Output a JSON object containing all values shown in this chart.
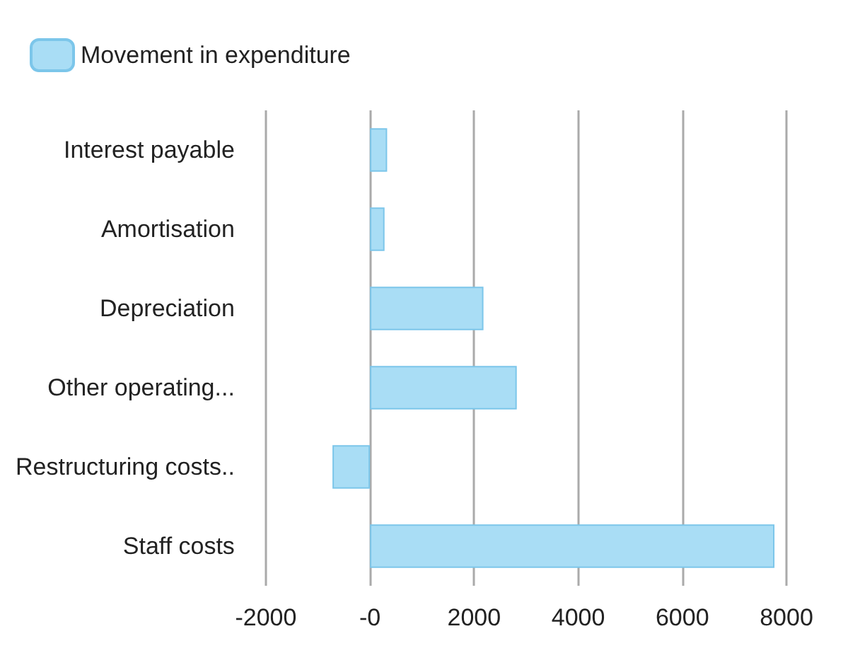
{
  "chart_data": {
    "type": "bar",
    "orientation": "horizontal",
    "categories": [
      "Interest payable",
      "Amortisation",
      "Depreciation",
      "Other operating...",
      "Restructuring costs..",
      "Staff costs"
    ],
    "series": [
      {
        "name": "Movement in expenditure",
        "color": "#a9ddf5",
        "values": [
          330,
          280,
          2180,
          2820,
          -720,
          7770
        ]
      }
    ],
    "xlim": [
      -2000,
      8000
    ],
    "xticks": [
      -2000,
      {
        "value": 0,
        "label": "-0"
      },
      2000,
      4000,
      6000,
      8000
    ],
    "grid": "x",
    "legend": "top left"
  }
}
